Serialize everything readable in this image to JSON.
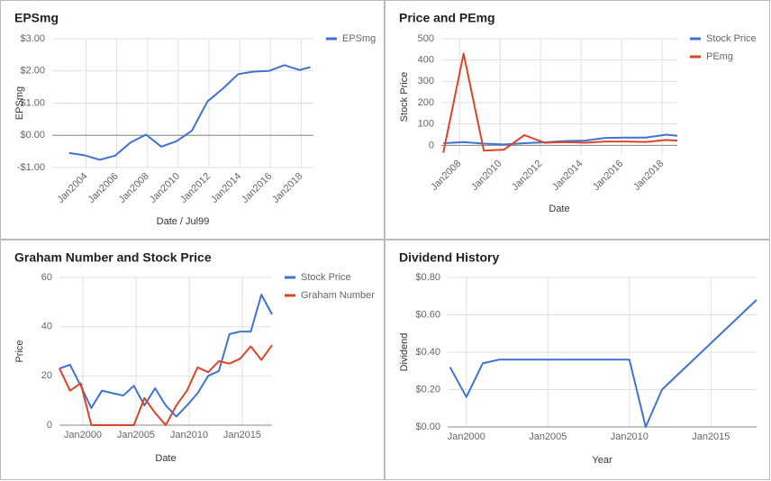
{
  "chart_data": [
    {
      "type": "line",
      "title": "EPSmg",
      "xlabel": "Date / Jul99",
      "ylabel": "EPSmg",
      "x": [
        2002.9,
        2003.9,
        2004.9,
        2005.9,
        2006.9,
        2007.9,
        2008.9,
        2009.9,
        2010.9,
        2011.9,
        2012.9,
        2013.9,
        2014.9,
        2015.9,
        2016.9,
        2017.9,
        2018.6
      ],
      "series": [
        {
          "name": "EPSmg",
          "color": "#3f72d3",
          "values": [
            -0.55,
            -0.62,
            -0.76,
            -0.63,
            -0.22,
            0.02,
            -0.35,
            -0.18,
            0.15,
            1.05,
            1.45,
            1.9,
            1.98,
            2.0,
            2.18,
            2.03,
            2.12
          ]
        }
      ],
      "xlim": [
        2001.8,
        2018.8
      ],
      "ylim": [
        -1,
        3
      ],
      "xticks": [
        {
          "value": 2004,
          "label": "Jan2004"
        },
        {
          "value": 2006,
          "label": "Jan2006"
        },
        {
          "value": 2008,
          "label": "Jan2008"
        },
        {
          "value": 2010,
          "label": "Jan2010"
        },
        {
          "value": 2012,
          "label": "Jan2012"
        },
        {
          "value": 2014,
          "label": "Jan2014"
        },
        {
          "value": 2016,
          "label": "Jan2016"
        },
        {
          "value": 2018,
          "label": "Jan2018"
        }
      ],
      "yticks": [
        {
          "value": 3,
          "label": "$3.00"
        },
        {
          "value": 2,
          "label": "$2.00"
        },
        {
          "value": 1,
          "label": "$1.00"
        },
        {
          "value": 0,
          "label": "$0.00"
        },
        {
          "value": -1,
          "label": "-$1.00"
        }
      ],
      "grid": true,
      "legend": "right",
      "rotate_xticks": true
    },
    {
      "type": "line",
      "title": "Price and PEmg",
      "xlabel": "Date",
      "ylabel": "Stock Price",
      "x": [
        2007.2,
        2008.2,
        2009.2,
        2010.2,
        2011.2,
        2012.2,
        2013.2,
        2014.2,
        2015.2,
        2016.2,
        2017.2,
        2018.2,
        2018.75
      ],
      "series": [
        {
          "name": "Stock Price",
          "color": "#3f72d3",
          "values": [
            10,
            15,
            8,
            4,
            10,
            14,
            20,
            22,
            35,
            36,
            36,
            50,
            45
          ]
        },
        {
          "name": "PEmg",
          "color": "#db4527",
          "values": [
            -35,
            430,
            -25,
            -20,
            48,
            12,
            15,
            12,
            18,
            18,
            16,
            25,
            22
          ]
        }
      ],
      "xlim": [
        2007.1,
        2018.75
      ],
      "ylim": [
        -45,
        500
      ],
      "xticks": [
        {
          "value": 2008,
          "label": "Jan2008"
        },
        {
          "value": 2010,
          "label": "Jan2010"
        },
        {
          "value": 2012,
          "label": "Jan2012"
        },
        {
          "value": 2014,
          "label": "Jan2014"
        },
        {
          "value": 2016,
          "label": "Jan2016"
        },
        {
          "value": 2018,
          "label": "Jan2018"
        }
      ],
      "yticks": [
        500,
        400,
        300,
        200,
        100,
        0
      ],
      "grid": true,
      "legend": "right",
      "rotate_xticks": true
    },
    {
      "type": "line",
      "title": "Graham Number and Stock Price",
      "xlabel": "Date",
      "ylabel": "Price",
      "x": [
        1997.8,
        1998.8,
        1999.8,
        2000.8,
        2001.8,
        2002.8,
        2003.8,
        2004.8,
        2005.8,
        2006.8,
        2007.8,
        2008.8,
        2009.8,
        2010.8,
        2011.8,
        2012.8,
        2013.8,
        2014.8,
        2015.8,
        2016.8,
        2017.8
      ],
      "series": [
        {
          "name": "Stock Price",
          "color": "#3f72d3",
          "values": [
            23,
            24.5,
            16,
            7,
            14,
            13,
            12,
            16,
            8,
            15,
            8,
            3.5,
            8,
            13,
            20,
            22,
            37,
            38,
            38,
            53,
            45
          ]
        },
        {
          "name": "Graham Number",
          "color": "#db4527",
          "values": [
            23,
            14,
            17,
            0,
            0,
            0,
            0,
            0,
            11,
            5,
            0,
            8,
            14,
            23.5,
            21.5,
            26,
            25,
            27,
            32,
            26.5,
            32.5
          ]
        }
      ],
      "xlim": [
        1997.8,
        2017.8
      ],
      "ylim": [
        0,
        60
      ],
      "xticks": [
        {
          "value": 2000,
          "label": "Jan2000"
        },
        {
          "value": 2005,
          "label": "Jan2005"
        },
        {
          "value": 2010,
          "label": "Jan2010"
        },
        {
          "value": 2015,
          "label": "Jan2015"
        }
      ],
      "yticks": [
        60,
        40,
        20,
        0
      ],
      "grid": true,
      "legend": "right",
      "rotate_xticks": false
    },
    {
      "type": "line",
      "title": "Dividend History",
      "xlabel": "Year",
      "ylabel": "Dividend",
      "x": [
        1999,
        2000,
        2001,
        2002,
        2003,
        2004,
        2005,
        2006,
        2007,
        2008,
        2009,
        2010,
        2011,
        2012,
        2017.8
      ],
      "series": [
        {
          "color": "#3f72d3",
          "values": [
            0.32,
            0.16,
            0.34,
            0.36,
            0.36,
            0.36,
            0.36,
            0.36,
            0.36,
            0.36,
            0.36,
            0.36,
            0,
            0.2,
            0.68
          ]
        }
      ],
      "xlim": [
        1998.85,
        2017.8
      ],
      "ylim": [
        0,
        0.8
      ],
      "xticks": [
        {
          "value": 2000,
          "label": "Jan2000"
        },
        {
          "value": 2005,
          "label": "Jan2005"
        },
        {
          "value": 2010,
          "label": "Jan2010"
        },
        {
          "value": 2015,
          "label": "Jan2015"
        }
      ],
      "yticks": [
        {
          "value": 0.8,
          "label": "$0.80"
        },
        {
          "value": 0.6,
          "label": "$0.60"
        },
        {
          "value": 0.4,
          "label": "$0.40"
        },
        {
          "value": 0.2,
          "label": "$0.20"
        },
        {
          "value": 0,
          "label": "$0.00"
        }
      ],
      "grid": true,
      "rotate_xticks": false
    }
  ]
}
